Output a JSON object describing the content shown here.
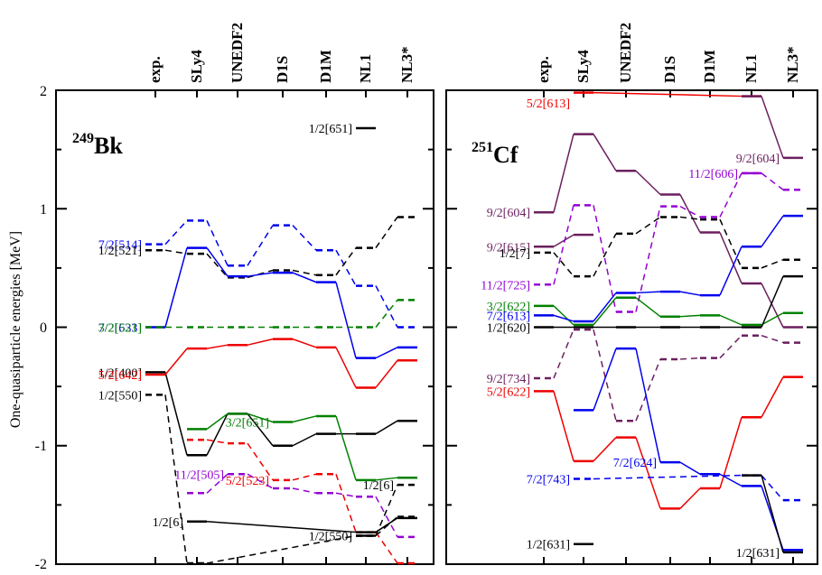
{
  "figure": {
    "ylabel": "One-quasiparticle energies  [MeV]",
    "y_ticks": [
      "-2",
      "-1",
      "0",
      "1",
      "2"
    ],
    "column_labels": [
      "exp.",
      "SLy4",
      "UNEDF2",
      "D1S",
      "D1M",
      "NL1",
      "NL3*"
    ]
  },
  "chart_data": [
    {
      "type": "line",
      "panel": "left",
      "title_mass": "249",
      "title_elem": "Bk",
      "categories": [
        "exp.",
        "SLy4",
        "UNEDF2",
        "D1S",
        "D1M",
        "NL1",
        "NL3*"
      ],
      "ylim": [
        -2,
        2
      ],
      "series": [
        {
          "name": "7/2[514]",
          "color": "#0000ee",
          "dashed": true,
          "values": [
            0.7,
            0.9,
            0.52,
            0.86,
            0.65,
            0.35,
            0.0
          ],
          "label_at": 0
        },
        {
          "name": "1/2[521]",
          "color": "#000000",
          "dashed": true,
          "values": [
            0.65,
            0.62,
            0.42,
            0.48,
            0.44,
            0.67,
            0.93
          ],
          "label_at": 0
        },
        {
          "name": "7/2[633]",
          "color": "#0000ee",
          "dashed": false,
          "values": [
            0.0,
            0.67,
            0.43,
            0.46,
            0.38,
            -0.26,
            -0.17
          ],
          "label_at": 0
        },
        {
          "name": "3/2[521]",
          "color": "#008000",
          "dashed": true,
          "values": [
            0.0,
            0.0,
            0.0,
            0.0,
            0.0,
            0.0,
            0.23
          ],
          "label_at": 0
        },
        {
          "name": "1/2[400]",
          "color": "#000000",
          "dashed": false,
          "values": [
            -0.38,
            -1.08,
            -0.73,
            -1.0,
            -0.9,
            -0.9,
            -0.79
          ],
          "label_at": 0
        },
        {
          "name": "5/2[642]",
          "color": "#ee0000",
          "dashed": false,
          "values": [
            -0.4,
            -0.18,
            -0.15,
            -0.1,
            -0.17,
            -0.51,
            -0.28
          ],
          "label_at": 0
        },
        {
          "name": "1/2[550]",
          "color": "#000000",
          "dashed": true,
          "values": [
            -0.57,
            -2.2,
            null,
            null,
            null,
            -1.76,
            -1.6
          ],
          "label_at": 0
        },
        {
          "name": "3/2[651]",
          "color": "#008000",
          "dashed": false,
          "values": [
            null,
            -0.86,
            -0.73,
            -0.8,
            -0.75,
            -1.29,
            -1.27
          ],
          "label_at": 3
        },
        {
          "name": "5/2[523]",
          "color": "#ee0000",
          "dashed": true,
          "values": [
            null,
            -0.95,
            -0.98,
            -1.29,
            -1.24,
            -1.73,
            -2.3
          ],
          "label_at": 3
        },
        {
          "name": "11/2[505]",
          "color": "#9400d3",
          "dashed": true,
          "values": [
            null,
            -1.4,
            -1.24,
            -1.36,
            -1.4,
            -1.43,
            -1.77
          ],
          "label_at": 2
        },
        {
          "name": "1/2[6]",
          "color": "#000000",
          "dashed": false,
          "values": [
            null,
            -1.64,
            null,
            null,
            null,
            -1.73,
            -1.61
          ],
          "label_at": 1
        },
        {
          "name": "1/2[6]",
          "color": "#000000",
          "dashed": true,
          "values": [
            null,
            null,
            null,
            null,
            null,
            -1.76,
            -1.33
          ],
          "label_at": 6
        },
        {
          "name": "1/2[550]",
          "color": "#000000",
          "dashed": false,
          "values": [
            null,
            null,
            null,
            null,
            null,
            -1.76,
            null
          ],
          "label_at": 5
        },
        {
          "name": "1/2[651]",
          "color": "#000000",
          "dashed": false,
          "values": [
            null,
            null,
            null,
            null,
            null,
            1.68,
            null
          ],
          "label_at": 5
        }
      ]
    },
    {
      "type": "line",
      "panel": "right",
      "title_mass": "251",
      "title_elem": "Cf",
      "categories": [
        "exp.",
        "SLy4",
        "UNEDF2",
        "D1S",
        "D1M",
        "NL1",
        "NL3*"
      ],
      "ylim": [
        -2,
        2
      ],
      "series": [
        {
          "name": "9/2[604]",
          "color": "#6b1f5e",
          "dashed": false,
          "values": [
            0.97,
            1.63,
            1.32,
            1.12,
            0.8,
            0.37,
            0.0
          ],
          "label_at": 0
        },
        {
          "name": "9/2[615]",
          "color": "#6b1f5e",
          "dashed": false,
          "values": [
            0.68,
            0.78,
            null,
            null,
            null,
            null,
            null
          ],
          "label_at": 0
        },
        {
          "name": "1/2[7]",
          "color": "#000000",
          "dashed": true,
          "values": [
            0.63,
            0.43,
            0.79,
            0.93,
            0.91,
            0.5,
            0.57
          ],
          "label_at": 0
        },
        {
          "name": "11/2[725]",
          "color": "#9400d3",
          "dashed": true,
          "values": [
            0.36,
            1.03,
            0.13,
            1.02,
            0.93,
            1.3,
            1.16
          ],
          "label_at": 0
        },
        {
          "name": "3/2[622]",
          "color": "#008000",
          "dashed": false,
          "values": [
            0.18,
            0.02,
            0.25,
            0.09,
            0.1,
            0.02,
            0.12
          ],
          "label_at": 0
        },
        {
          "name": "7/2[613]",
          "color": "#0000ee",
          "dashed": false,
          "values": [
            0.1,
            0.05,
            0.29,
            0.3,
            0.27,
            0.68,
            0.94
          ],
          "label_at": 0
        },
        {
          "name": "1/2[620]",
          "color": "#000000",
          "dashed": false,
          "values": [
            0.0,
            0.0,
            0.0,
            0.0,
            0.0,
            0.0,
            0.43
          ],
          "label_at": 0
        },
        {
          "name": "9/2[734]",
          "color": "#6b1f5e",
          "dashed": true,
          "values": [
            -0.43,
            -0.02,
            -0.79,
            -0.27,
            -0.26,
            -0.07,
            -0.13
          ],
          "label_at": 0
        },
        {
          "name": "5/2[622]",
          "color": "#ee0000",
          "dashed": false,
          "values": [
            -0.54,
            -1.13,
            -0.93,
            -1.53,
            -1.36,
            -0.76,
            -0.42
          ],
          "label_at": 0
        },
        {
          "name": "7/2[624]",
          "color": "#0000ee",
          "dashed": false,
          "values": [
            null,
            -0.7,
            -0.18,
            -1.14,
            -1.24,
            -1.34,
            -1.88
          ],
          "label_at": 3
        },
        {
          "name": "7/2[743]",
          "color": "#0000ee",
          "dashed": true,
          "values": [
            null,
            -1.28,
            null,
            null,
            null,
            -1.25,
            -1.46
          ],
          "label_at": 1
        },
        {
          "name": "1/2[631]",
          "color": "#000000",
          "dashed": false,
          "values": [
            null,
            null,
            null,
            null,
            null,
            -1.25,
            -1.9
          ],
          "label_at": 6
        },
        {
          "name": "1/2[631]",
          "color": "#000000",
          "dashed": false,
          "values": [
            null,
            -1.83,
            null,
            null,
            null,
            null,
            null
          ],
          "label_at": 1
        },
        {
          "name": "5/2[613]",
          "color": "#ee0000",
          "dashed": false,
          "values": [
            null,
            1.98,
            null,
            null,
            null,
            1.95,
            null
          ],
          "label_at": 1
        },
        {
          "name": "11/2[606]",
          "color": "#9400d3",
          "dashed": false,
          "values": [
            null,
            null,
            null,
            null,
            null,
            1.3,
            null
          ],
          "label_at": 5
        },
        {
          "name": "9/2[604]",
          "color": "#6b1f5e",
          "dashed": false,
          "values": [
            null,
            null,
            null,
            null,
            null,
            1.95,
            1.43
          ],
          "label_at": 6
        }
      ]
    }
  ]
}
